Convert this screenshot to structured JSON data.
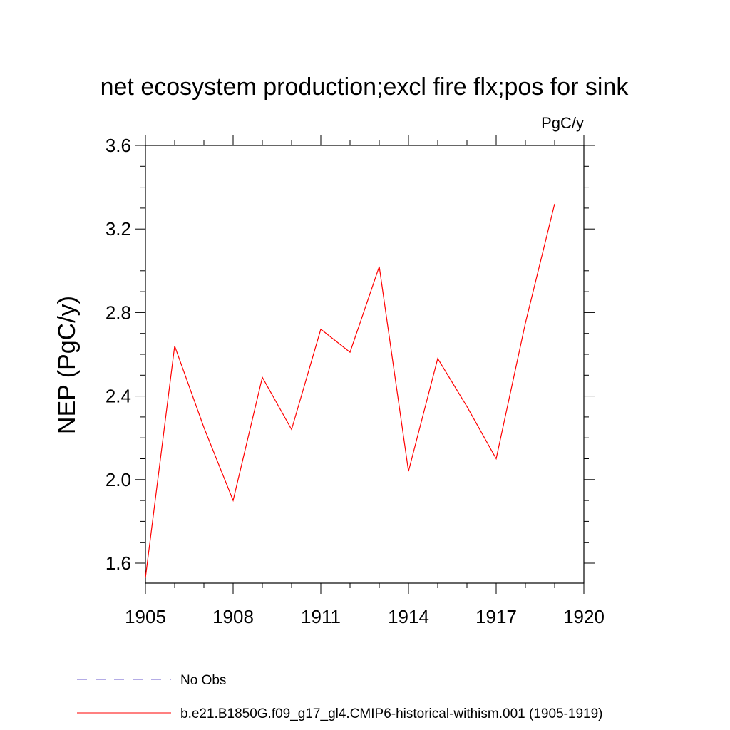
{
  "chart_data": {
    "type": "line",
    "title": "net ecosystem production;excl fire flx;pos for sink",
    "units": "PgC/y",
    "ylabel": "NEP  (PgC/y)",
    "xlabel": "",
    "xlim": [
      1905,
      1920
    ],
    "ylim": [
      1.5,
      3.65
    ],
    "x_ticks": [
      1905,
      1908,
      1911,
      1914,
      1917,
      1920
    ],
    "y_ticks": [
      1.6,
      2.0,
      2.4,
      2.8,
      3.2,
      3.6
    ],
    "x_tick_labels": [
      "1905",
      "1908",
      "1911",
      "1914",
      "1917",
      "1920"
    ],
    "y_tick_labels": [
      "1.6",
      "2.0",
      "2.4",
      "2.8",
      "3.2",
      "3.6"
    ],
    "grid": false,
    "legend_placement": "bottom",
    "series": [
      {
        "name": "b.e21.B1850G.f09_g17_gl4.CMIP6-historical-withism.001 (1905-1919)",
        "color": "#ff0000",
        "dash": "solid",
        "x": [
          1905,
          1906,
          1907,
          1908,
          1909,
          1910,
          1911,
          1912,
          1913,
          1914,
          1915,
          1916,
          1917,
          1918,
          1919
        ],
        "values": [
          1.53,
          2.64,
          2.25,
          1.9,
          2.49,
          2.24,
          2.72,
          2.61,
          3.02,
          2.04,
          2.58,
          2.35,
          2.1,
          2.75,
          3.32
        ]
      }
    ],
    "legend": [
      {
        "label": "No Obs",
        "color": "#6a5acd",
        "dash": "dashed"
      },
      {
        "label": "b.e21.B1850G.f09_g17_gl4.CMIP6-historical-withism.001 (1905-1919)",
        "color": "#ff0000",
        "dash": "solid"
      }
    ]
  }
}
